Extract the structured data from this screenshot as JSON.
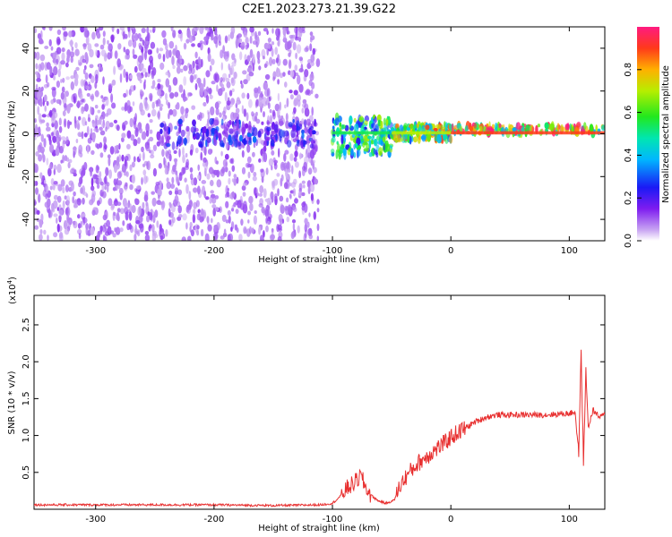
{
  "chart_data": [
    {
      "type": "heatmap",
      "title": "C2E1.2023.273.21.39.G22",
      "xlabel": "Height of straight line (km)",
      "ylabel": "Frequency (Hz)",
      "xlim": [
        -352,
        130
      ],
      "ylim": [
        -50,
        50
      ],
      "xticks": [
        -300,
        -200,
        -100,
        0,
        100
      ],
      "yticks": [
        -40,
        -20,
        0,
        20,
        40
      ],
      "colorbar": {
        "label": "Normalized spectral amplitude",
        "range": [
          0.0,
          1.0
        ],
        "ticks": [
          0.0,
          0.2,
          0.4,
          0.6,
          0.8
        ]
      },
      "regions": [
        {
          "x_range": [
            -352,
            -112
          ],
          "freq_range": [
            -50,
            50
          ],
          "amplitude": 0.1
        },
        {
          "x_range": [
            -245,
            -112
          ],
          "freq_range": [
            -6,
            6
          ],
          "amplitude": 0.25
        },
        {
          "x_range": [
            -100,
            -50
          ],
          "freq_range": [
            -10,
            8
          ],
          "amplitude": 0.55
        },
        {
          "x_range": [
            -50,
            0
          ],
          "freq_range": [
            -3,
            4
          ],
          "amplitude": 0.7
        },
        {
          "x_range": [
            0,
            130
          ],
          "freq_range": [
            0,
            4
          ],
          "amplitude": 0.9
        }
      ]
    },
    {
      "type": "line",
      "xlabel": "Height of straight line (km)",
      "ylabel": "SNR (10 * v/v)",
      "y_multiplier": "(x10",
      "y_multiplier_exp": "4",
      "xlim": [
        -352,
        130
      ],
      "ylim": [
        0,
        2.9
      ],
      "xticks": [
        -300,
        -200,
        -100,
        0,
        100
      ],
      "yticks": [
        0.5,
        1.0,
        1.5,
        2.0,
        2.5
      ],
      "series": [
        {
          "color": "#e83030",
          "x": [
            -352,
            -300,
            -250,
            -200,
            -150,
            -110,
            -100,
            -95,
            -88,
            -82,
            -76,
            -72,
            -68,
            -62,
            -55,
            -48,
            -42,
            -35,
            -28,
            -20,
            -12,
            -5,
            0,
            10,
            20,
            30,
            40,
            50,
            60,
            70,
            80,
            90,
            100,
            105,
            108,
            110,
            112,
            114,
            116,
            120,
            125,
            130
          ],
          "y": [
            0.06,
            0.06,
            0.06,
            0.06,
            0.05,
            0.06,
            0.08,
            0.15,
            0.28,
            0.35,
            0.45,
            0.3,
            0.2,
            0.12,
            0.08,
            0.12,
            0.35,
            0.5,
            0.62,
            0.72,
            0.82,
            0.9,
            0.98,
            1.08,
            1.18,
            1.25,
            1.28,
            1.28,
            1.28,
            1.28,
            1.28,
            1.29,
            1.3,
            1.32,
            0.75,
            2.15,
            0.55,
            1.9,
            1.1,
            1.35,
            1.25,
            1.28
          ]
        }
      ]
    }
  ]
}
